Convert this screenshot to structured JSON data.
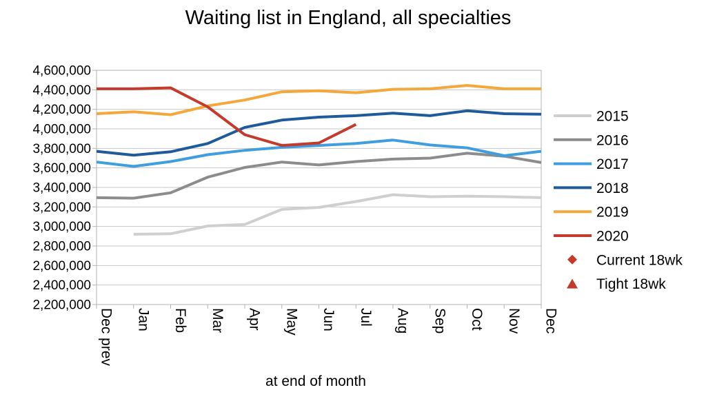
{
  "chart_data": {
    "type": "line",
    "title": "Waiting list in England, all specialties",
    "xlabel": "at end of month",
    "ylabel": "",
    "categories": [
      "Dec prev",
      "Jan",
      "Feb",
      "Mar",
      "Apr",
      "May",
      "Jun",
      "Jul",
      "Aug",
      "Sep",
      "Oct",
      "Nov",
      "Dec"
    ],
    "ylim": [
      2200000,
      4600000
    ],
    "ytick_step": 200000,
    "yticks": [
      "2,200,000",
      "2,400,000",
      "2,600,000",
      "2,800,000",
      "3,000,000",
      "3,200,000",
      "3,400,000",
      "3,600,000",
      "3,800,000",
      "4,000,000",
      "4,200,000",
      "4,400,000",
      "4,600,000"
    ],
    "grid": "horizontal",
    "legend_position": "right",
    "series": [
      {
        "name": "2015",
        "color": "#cfcfcf",
        "values": [
          null,
          2920000,
          2925000,
          3005000,
          3020000,
          3175000,
          3195000,
          3255000,
          3325000,
          3305000,
          3310000,
          3305000,
          3295000
        ]
      },
      {
        "name": "2016",
        "color": "#8c8c8c",
        "values": [
          3295000,
          3290000,
          3345000,
          3505000,
          3605000,
          3660000,
          3630000,
          3665000,
          3690000,
          3700000,
          3750000,
          3720000,
          3655000
        ]
      },
      {
        "name": "2017",
        "color": "#3f9ee0",
        "values": [
          3660000,
          3615000,
          3665000,
          3735000,
          3780000,
          3810000,
          3830000,
          3850000,
          3885000,
          3835000,
          3805000,
          3725000,
          3770000
        ]
      },
      {
        "name": "2018",
        "color": "#1f5b9b",
        "values": [
          3770000,
          3730000,
          3765000,
          3850000,
          4015000,
          4090000,
          4120000,
          4135000,
          4160000,
          4135000,
          4185000,
          4155000,
          4150000
        ]
      },
      {
        "name": "2019",
        "color": "#f5a83a",
        "values": [
          4155000,
          4175000,
          4145000,
          4235000,
          4295000,
          4380000,
          4390000,
          4370000,
          4405000,
          4410000,
          4445000,
          4410000,
          4410000
        ]
      },
      {
        "name": "2020",
        "color": "#c43a2b",
        "values": [
          4410000,
          4410000,
          4420000,
          4225000,
          3940000,
          3830000,
          3855000,
          4045000,
          null,
          null,
          null,
          null,
          null
        ]
      }
    ],
    "marker_legend": [
      {
        "name": "Current 18wk",
        "marker": "diamond",
        "color": "#c43a2b"
      },
      {
        "name": "Tight 18wk",
        "marker": "triangle",
        "color": "#c43a2b"
      }
    ]
  }
}
